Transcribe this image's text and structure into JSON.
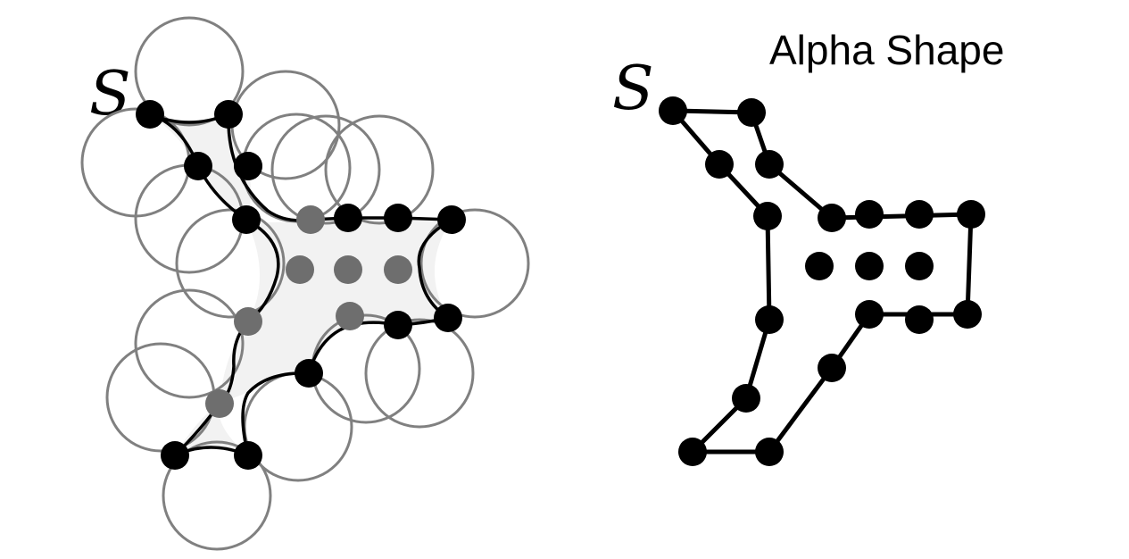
{
  "left_panel": {
    "set_label": "S"
  },
  "right_panel": {
    "set_label": "S",
    "title": "Alpha Shape"
  },
  "colors": {
    "boundary_point": "#000000",
    "interior_point_left": "#6e6e6e",
    "interior_point_right": "#000000",
    "circle_stroke": "#808080",
    "region_fill": "#f2f2f2"
  }
}
